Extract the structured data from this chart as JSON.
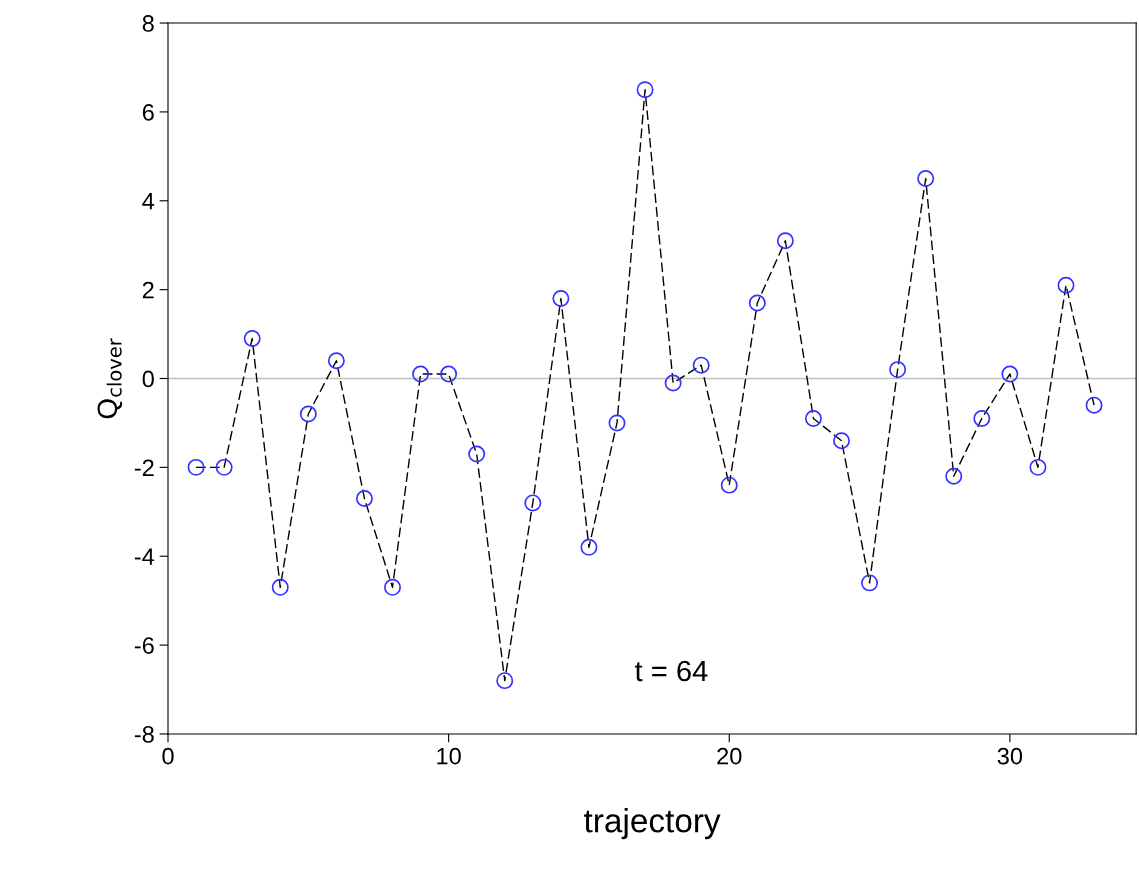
{
  "chart_data": {
    "type": "line",
    "xlabel": "trajectory",
    "ylabel": "Q$_{clover}$",
    "x": [
      1,
      2,
      3,
      4,
      5,
      6,
      7,
      8,
      9,
      10,
      11,
      12,
      13,
      14,
      15,
      16,
      17,
      18,
      19,
      20,
      21,
      22,
      23,
      24,
      25,
      26,
      27,
      28,
      29,
      30,
      31,
      32,
      33
    ],
    "series": [
      {
        "color": "#3333ff",
        "values": [
          -2.0,
          -2.0,
          0.9,
          -4.7,
          -0.8,
          0.4,
          -2.7,
          -4.7,
          0.1,
          0.1,
          -1.7,
          -6.8,
          -2.8,
          1.8,
          -3.8,
          -1.0,
          6.5,
          -0.1,
          0.3,
          -2.4,
          1.7,
          3.1,
          -0.9,
          -1.4,
          -4.6,
          0.2,
          4.5,
          -2.2,
          -0.9,
          0.1,
          -2.0,
          2.1,
          -0.6
        ]
      }
    ],
    "marker": "circle",
    "line_style": "dashed",
    "xlim": [
      0,
      34.5
    ],
    "xticks": [
      0,
      10,
      20,
      30
    ],
    "ylim": [
      -8,
      8
    ],
    "yticks": [
      -8,
      -6,
      -4,
      -2,
      0,
      2,
      4,
      6,
      8
    ],
    "ref_lines": [
      {
        "axis": "y",
        "value": 0,
        "color": "#c0c0c0"
      }
    ],
    "annotations": [
      "t = 64"
    ],
    "grid": false,
    "legend": false
  }
}
